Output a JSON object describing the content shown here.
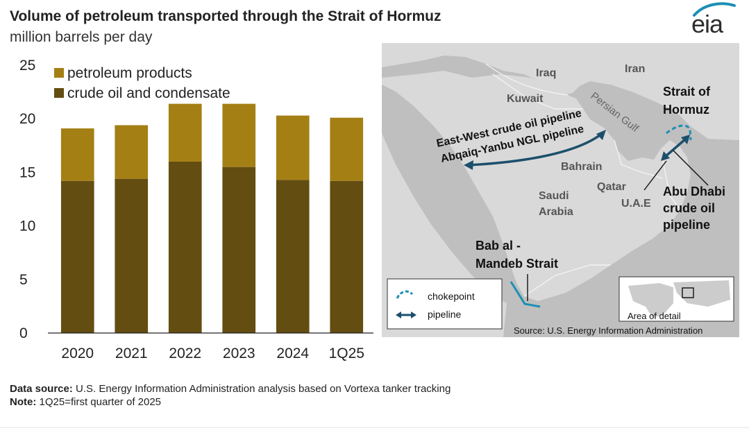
{
  "title": "Volume of petroleum transported through the Strait of Hormuz",
  "subtitle": "million barrels per day",
  "colors": {
    "petroleum_products": "#a47f14",
    "crude_oil": "#634d10",
    "accent_blue": "#1b8fb4",
    "pipeline_blue": "#1c4f6c"
  },
  "chart_data": {
    "type": "bar",
    "stacked": true,
    "categories": [
      "2020",
      "2021",
      "2022",
      "2023",
      "2024",
      "1Q25"
    ],
    "series": [
      {
        "name": "crude oil and condensate",
        "values": [
          14.2,
          14.4,
          16.0,
          15.5,
          14.3,
          14.2
        ]
      },
      {
        "name": "petroleum products",
        "values": [
          4.9,
          5.0,
          5.4,
          5.9,
          6.0,
          5.9
        ]
      }
    ],
    "ylim": [
      0,
      25
    ],
    "yticks": [
      "0",
      "5",
      "10",
      "15",
      "20",
      "25"
    ],
    "legend": [
      "petroleum products",
      "crude oil and condensate"
    ],
    "legend_position": "top-left",
    "grid": false
  },
  "map": {
    "labels": {
      "iraq": "Iraq",
      "iran": "Iran",
      "kuwait": "Kuwait",
      "persian_gulf": "Persian Gulf",
      "bahrain": "Bahrain",
      "qatar": "Qatar",
      "uae": "U.A.E",
      "saudi": [
        "Saudi",
        "Arabia"
      ],
      "pipeline1": "East-West crude oil pipeline",
      "pipeline2": "Abqaiq-Yanbu NGL pipeline",
      "hormuz": [
        "Strait of",
        "Hormuz"
      ],
      "abu_dhabi": [
        "Abu Dhabi",
        "crude oil",
        "pipeline"
      ],
      "bab": [
        "Bab al -",
        "Mandeb Strait"
      ]
    },
    "legend": {
      "chokepoint": "chokepoint",
      "pipeline": "pipeline"
    },
    "inset_label": "Area of detail",
    "source": "Source: U.S. Energy Information Administration"
  },
  "logo": "eia",
  "footer": {
    "data_source_label": "Data source:",
    "data_source_text": " U.S. Energy Information Administration analysis based on Vortexa tanker tracking",
    "note_label": "Note:",
    "note_text": " 1Q25=first quarter of 2025"
  }
}
